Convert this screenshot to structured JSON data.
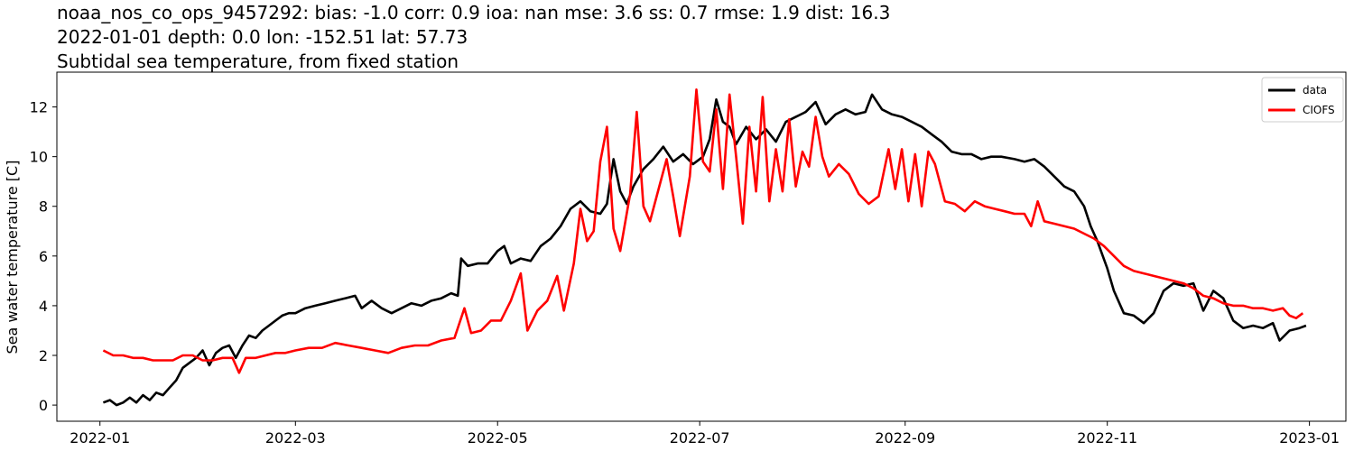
{
  "chart_data": {
    "type": "line",
    "title_lines": [
      "noaa_nos_co_ops_9457292: bias: -1.0  corr: 0.9  ioa: nan  mse: 3.6  ss: 0.7  rmse: 1.9  dist: 16.3",
      "2022-01-01 depth: 0.0 lon: -152.51 lat: 57.73",
      "Subtidal sea temperature, from fixed station"
    ],
    "xlabel": "",
    "ylabel": "Sea water temperature [C]",
    "xlim": [
      "2021-12-19",
      "2023-01-12"
    ],
    "ylim": [
      -0.65,
      13.4
    ],
    "x_ticks": [
      "2022-01",
      "2022-03",
      "2022-05",
      "2022-07",
      "2022-09",
      "2022-11",
      "2023-01"
    ],
    "y_ticks": [
      0,
      2,
      4,
      6,
      8,
      10,
      12
    ],
    "grid": false,
    "legend_position": "top-right",
    "series": [
      {
        "name": "data",
        "color": "#000000",
        "points": [
          [
            "2022-01-02",
            0.1
          ],
          [
            "2022-01-04",
            0.2
          ],
          [
            "2022-01-06",
            0.0
          ],
          [
            "2022-01-08",
            0.1
          ],
          [
            "2022-01-10",
            0.3
          ],
          [
            "2022-01-12",
            0.1
          ],
          [
            "2022-01-14",
            0.4
          ],
          [
            "2022-01-16",
            0.2
          ],
          [
            "2022-01-18",
            0.5
          ],
          [
            "2022-01-20",
            0.4
          ],
          [
            "2022-01-22",
            0.7
          ],
          [
            "2022-01-24",
            1.0
          ],
          [
            "2022-01-26",
            1.5
          ],
          [
            "2022-01-28",
            1.7
          ],
          [
            "2022-01-30",
            1.9
          ],
          [
            "2022-02-01",
            2.2
          ],
          [
            "2022-02-03",
            1.6
          ],
          [
            "2022-02-05",
            2.1
          ],
          [
            "2022-02-07",
            2.3
          ],
          [
            "2022-02-09",
            2.4
          ],
          [
            "2022-02-11",
            1.9
          ],
          [
            "2022-02-13",
            2.4
          ],
          [
            "2022-02-15",
            2.8
          ],
          [
            "2022-02-17",
            2.7
          ],
          [
            "2022-02-19",
            3.0
          ],
          [
            "2022-02-21",
            3.2
          ],
          [
            "2022-02-23",
            3.4
          ],
          [
            "2022-02-25",
            3.6
          ],
          [
            "2022-02-27",
            3.7
          ],
          [
            "2022-03-01",
            3.7
          ],
          [
            "2022-03-04",
            3.9
          ],
          [
            "2022-03-07",
            4.0
          ],
          [
            "2022-03-10",
            4.1
          ],
          [
            "2022-03-13",
            4.2
          ],
          [
            "2022-03-16",
            4.3
          ],
          [
            "2022-03-19",
            4.4
          ],
          [
            "2022-03-21",
            3.9
          ],
          [
            "2022-03-24",
            4.2
          ],
          [
            "2022-03-27",
            3.9
          ],
          [
            "2022-03-30",
            3.7
          ],
          [
            "2022-04-02",
            3.9
          ],
          [
            "2022-04-05",
            4.1
          ],
          [
            "2022-04-08",
            4.0
          ],
          [
            "2022-04-11",
            4.2
          ],
          [
            "2022-04-14",
            4.3
          ],
          [
            "2022-04-17",
            4.5
          ],
          [
            "2022-04-19",
            4.4
          ],
          [
            "2022-04-20",
            5.9
          ],
          [
            "2022-04-22",
            5.6
          ],
          [
            "2022-04-25",
            5.7
          ],
          [
            "2022-04-28",
            5.7
          ],
          [
            "2022-05-01",
            6.2
          ],
          [
            "2022-05-03",
            6.4
          ],
          [
            "2022-05-05",
            5.7
          ],
          [
            "2022-05-08",
            5.9
          ],
          [
            "2022-05-11",
            5.8
          ],
          [
            "2022-05-14",
            6.4
          ],
          [
            "2022-05-17",
            6.7
          ],
          [
            "2022-05-20",
            7.2
          ],
          [
            "2022-05-23",
            7.9
          ],
          [
            "2022-05-26",
            8.2
          ],
          [
            "2022-05-29",
            7.8
          ],
          [
            "2022-06-01",
            7.7
          ],
          [
            "2022-06-03",
            8.1
          ],
          [
            "2022-06-05",
            9.9
          ],
          [
            "2022-06-07",
            8.6
          ],
          [
            "2022-06-09",
            8.1
          ],
          [
            "2022-06-11",
            8.8
          ],
          [
            "2022-06-14",
            9.5
          ],
          [
            "2022-06-17",
            9.9
          ],
          [
            "2022-06-20",
            10.4
          ],
          [
            "2022-06-23",
            9.8
          ],
          [
            "2022-06-26",
            10.1
          ],
          [
            "2022-06-29",
            9.7
          ],
          [
            "2022-07-02",
            10.0
          ],
          [
            "2022-07-04",
            10.7
          ],
          [
            "2022-07-06",
            12.3
          ],
          [
            "2022-07-08",
            11.4
          ],
          [
            "2022-07-10",
            11.2
          ],
          [
            "2022-07-12",
            10.5
          ],
          [
            "2022-07-15",
            11.2
          ],
          [
            "2022-07-18",
            10.7
          ],
          [
            "2022-07-21",
            11.1
          ],
          [
            "2022-07-24",
            10.6
          ],
          [
            "2022-07-27",
            11.4
          ],
          [
            "2022-07-30",
            11.6
          ],
          [
            "2022-08-02",
            11.8
          ],
          [
            "2022-08-05",
            12.2
          ],
          [
            "2022-08-08",
            11.3
          ],
          [
            "2022-08-11",
            11.7
          ],
          [
            "2022-08-14",
            11.9
          ],
          [
            "2022-08-17",
            11.7
          ],
          [
            "2022-08-20",
            11.8
          ],
          [
            "2022-08-22",
            12.5
          ],
          [
            "2022-08-25",
            11.9
          ],
          [
            "2022-08-28",
            11.7
          ],
          [
            "2022-08-31",
            11.6
          ],
          [
            "2022-09-03",
            11.4
          ],
          [
            "2022-09-06",
            11.2
          ],
          [
            "2022-09-09",
            10.9
          ],
          [
            "2022-09-12",
            10.6
          ],
          [
            "2022-09-15",
            10.2
          ],
          [
            "2022-09-18",
            10.1
          ],
          [
            "2022-09-21",
            10.1
          ],
          [
            "2022-09-24",
            9.9
          ],
          [
            "2022-09-27",
            10.0
          ],
          [
            "2022-09-30",
            10.0
          ],
          [
            "2022-10-04",
            9.9
          ],
          [
            "2022-10-07",
            9.8
          ],
          [
            "2022-10-10",
            9.9
          ],
          [
            "2022-10-13",
            9.6
          ],
          [
            "2022-10-16",
            9.2
          ],
          [
            "2022-10-19",
            8.8
          ],
          [
            "2022-10-22",
            8.6
          ],
          [
            "2022-10-25",
            8.0
          ],
          [
            "2022-10-27",
            7.2
          ],
          [
            "2022-10-29",
            6.6
          ],
          [
            "2022-11-01",
            5.5
          ],
          [
            "2022-11-03",
            4.6
          ],
          [
            "2022-11-06",
            3.7
          ],
          [
            "2022-11-09",
            3.6
          ],
          [
            "2022-11-12",
            3.3
          ],
          [
            "2022-11-15",
            3.7
          ],
          [
            "2022-11-18",
            4.6
          ],
          [
            "2022-11-21",
            4.9
          ],
          [
            "2022-11-24",
            4.8
          ],
          [
            "2022-11-27",
            4.9
          ],
          [
            "2022-11-30",
            3.8
          ],
          [
            "2022-12-03",
            4.6
          ],
          [
            "2022-12-06",
            4.3
          ],
          [
            "2022-12-09",
            3.4
          ],
          [
            "2022-12-12",
            3.1
          ],
          [
            "2022-12-15",
            3.2
          ],
          [
            "2022-12-18",
            3.1
          ],
          [
            "2022-12-21",
            3.3
          ],
          [
            "2022-12-23",
            2.6
          ],
          [
            "2022-12-26",
            3.0
          ],
          [
            "2022-12-29",
            3.1
          ],
          [
            "2022-12-31",
            3.2
          ]
        ]
      },
      {
        "name": "CIOFS",
        "color": "#ff0000",
        "points": [
          [
            "2022-01-02",
            2.2
          ],
          [
            "2022-01-05",
            2.0
          ],
          [
            "2022-01-08",
            2.0
          ],
          [
            "2022-01-11",
            1.9
          ],
          [
            "2022-01-14",
            1.9
          ],
          [
            "2022-01-17",
            1.8
          ],
          [
            "2022-01-20",
            1.8
          ],
          [
            "2022-01-23",
            1.8
          ],
          [
            "2022-01-26",
            2.0
          ],
          [
            "2022-01-29",
            2.0
          ],
          [
            "2022-02-01",
            1.8
          ],
          [
            "2022-02-04",
            1.8
          ],
          [
            "2022-02-07",
            1.9
          ],
          [
            "2022-02-10",
            1.9
          ],
          [
            "2022-02-12",
            1.3
          ],
          [
            "2022-02-14",
            1.9
          ],
          [
            "2022-02-17",
            1.9
          ],
          [
            "2022-02-20",
            2.0
          ],
          [
            "2022-02-23",
            2.1
          ],
          [
            "2022-02-26",
            2.1
          ],
          [
            "2022-03-01",
            2.2
          ],
          [
            "2022-03-05",
            2.3
          ],
          [
            "2022-03-09",
            2.3
          ],
          [
            "2022-03-13",
            2.5
          ],
          [
            "2022-03-17",
            2.4
          ],
          [
            "2022-03-21",
            2.3
          ],
          [
            "2022-03-25",
            2.2
          ],
          [
            "2022-03-29",
            2.1
          ],
          [
            "2022-04-02",
            2.3
          ],
          [
            "2022-04-06",
            2.4
          ],
          [
            "2022-04-10",
            2.4
          ],
          [
            "2022-04-14",
            2.6
          ],
          [
            "2022-04-18",
            2.7
          ],
          [
            "2022-04-21",
            3.9
          ],
          [
            "2022-04-23",
            2.9
          ],
          [
            "2022-04-26",
            3.0
          ],
          [
            "2022-04-29",
            3.4
          ],
          [
            "2022-05-02",
            3.4
          ],
          [
            "2022-05-05",
            4.2
          ],
          [
            "2022-05-08",
            5.3
          ],
          [
            "2022-05-10",
            3.0
          ],
          [
            "2022-05-13",
            3.8
          ],
          [
            "2022-05-16",
            4.2
          ],
          [
            "2022-05-19",
            5.2
          ],
          [
            "2022-05-21",
            3.8
          ],
          [
            "2022-05-24",
            5.7
          ],
          [
            "2022-05-26",
            7.9
          ],
          [
            "2022-05-28",
            6.6
          ],
          [
            "2022-05-30",
            7.0
          ],
          [
            "2022-06-01",
            9.8
          ],
          [
            "2022-06-03",
            11.2
          ],
          [
            "2022-06-05",
            7.1
          ],
          [
            "2022-06-07",
            6.2
          ],
          [
            "2022-06-10",
            8.5
          ],
          [
            "2022-06-12",
            11.8
          ],
          [
            "2022-06-14",
            8.0
          ],
          [
            "2022-06-16",
            7.4
          ],
          [
            "2022-06-19",
            8.9
          ],
          [
            "2022-06-21",
            9.9
          ],
          [
            "2022-06-23",
            8.4
          ],
          [
            "2022-06-25",
            6.8
          ],
          [
            "2022-06-28",
            9.2
          ],
          [
            "2022-06-30",
            12.7
          ],
          [
            "2022-07-02",
            9.8
          ],
          [
            "2022-07-04",
            9.4
          ],
          [
            "2022-07-06",
            11.9
          ],
          [
            "2022-07-08",
            8.7
          ],
          [
            "2022-07-10",
            12.5
          ],
          [
            "2022-07-12",
            10.0
          ],
          [
            "2022-07-14",
            7.3
          ],
          [
            "2022-07-16",
            11.2
          ],
          [
            "2022-07-18",
            8.6
          ],
          [
            "2022-07-20",
            12.4
          ],
          [
            "2022-07-22",
            8.2
          ],
          [
            "2022-07-24",
            10.3
          ],
          [
            "2022-07-26",
            8.6
          ],
          [
            "2022-07-28",
            11.5
          ],
          [
            "2022-07-30",
            8.8
          ],
          [
            "2022-08-01",
            10.2
          ],
          [
            "2022-08-03",
            9.6
          ],
          [
            "2022-08-05",
            11.6
          ],
          [
            "2022-08-07",
            10.0
          ],
          [
            "2022-08-09",
            9.2
          ],
          [
            "2022-08-12",
            9.7
          ],
          [
            "2022-08-15",
            9.3
          ],
          [
            "2022-08-18",
            8.5
          ],
          [
            "2022-08-21",
            8.1
          ],
          [
            "2022-08-24",
            8.4
          ],
          [
            "2022-08-27",
            10.3
          ],
          [
            "2022-08-29",
            8.7
          ],
          [
            "2022-08-31",
            10.3
          ],
          [
            "2022-09-02",
            8.2
          ],
          [
            "2022-09-04",
            10.1
          ],
          [
            "2022-09-06",
            8.0
          ],
          [
            "2022-09-08",
            10.2
          ],
          [
            "2022-09-10",
            9.7
          ],
          [
            "2022-09-13",
            8.2
          ],
          [
            "2022-09-16",
            8.1
          ],
          [
            "2022-09-19",
            7.8
          ],
          [
            "2022-09-22",
            8.2
          ],
          [
            "2022-09-25",
            8.0
          ],
          [
            "2022-09-28",
            7.9
          ],
          [
            "2022-10-01",
            7.8
          ],
          [
            "2022-10-04",
            7.7
          ],
          [
            "2022-10-07",
            7.7
          ],
          [
            "2022-10-09",
            7.2
          ],
          [
            "2022-10-11",
            8.2
          ],
          [
            "2022-10-13",
            7.4
          ],
          [
            "2022-10-16",
            7.3
          ],
          [
            "2022-10-19",
            7.2
          ],
          [
            "2022-10-22",
            7.1
          ],
          [
            "2022-10-25",
            6.9
          ],
          [
            "2022-10-28",
            6.7
          ],
          [
            "2022-10-31",
            6.4
          ],
          [
            "2022-11-03",
            6.0
          ],
          [
            "2022-11-06",
            5.6
          ],
          [
            "2022-11-09",
            5.4
          ],
          [
            "2022-11-12",
            5.3
          ],
          [
            "2022-11-15",
            5.2
          ],
          [
            "2022-11-18",
            5.1
          ],
          [
            "2022-11-21",
            5.0
          ],
          [
            "2022-11-24",
            4.9
          ],
          [
            "2022-11-27",
            4.7
          ],
          [
            "2022-11-30",
            4.4
          ],
          [
            "2022-12-03",
            4.3
          ],
          [
            "2022-12-06",
            4.1
          ],
          [
            "2022-12-09",
            4.0
          ],
          [
            "2022-12-12",
            4.0
          ],
          [
            "2022-12-15",
            3.9
          ],
          [
            "2022-12-18",
            3.9
          ],
          [
            "2022-12-21",
            3.8
          ],
          [
            "2022-12-24",
            3.9
          ],
          [
            "2022-12-26",
            3.6
          ],
          [
            "2022-12-28",
            3.5
          ],
          [
            "2022-12-30",
            3.7
          ]
        ]
      }
    ]
  }
}
